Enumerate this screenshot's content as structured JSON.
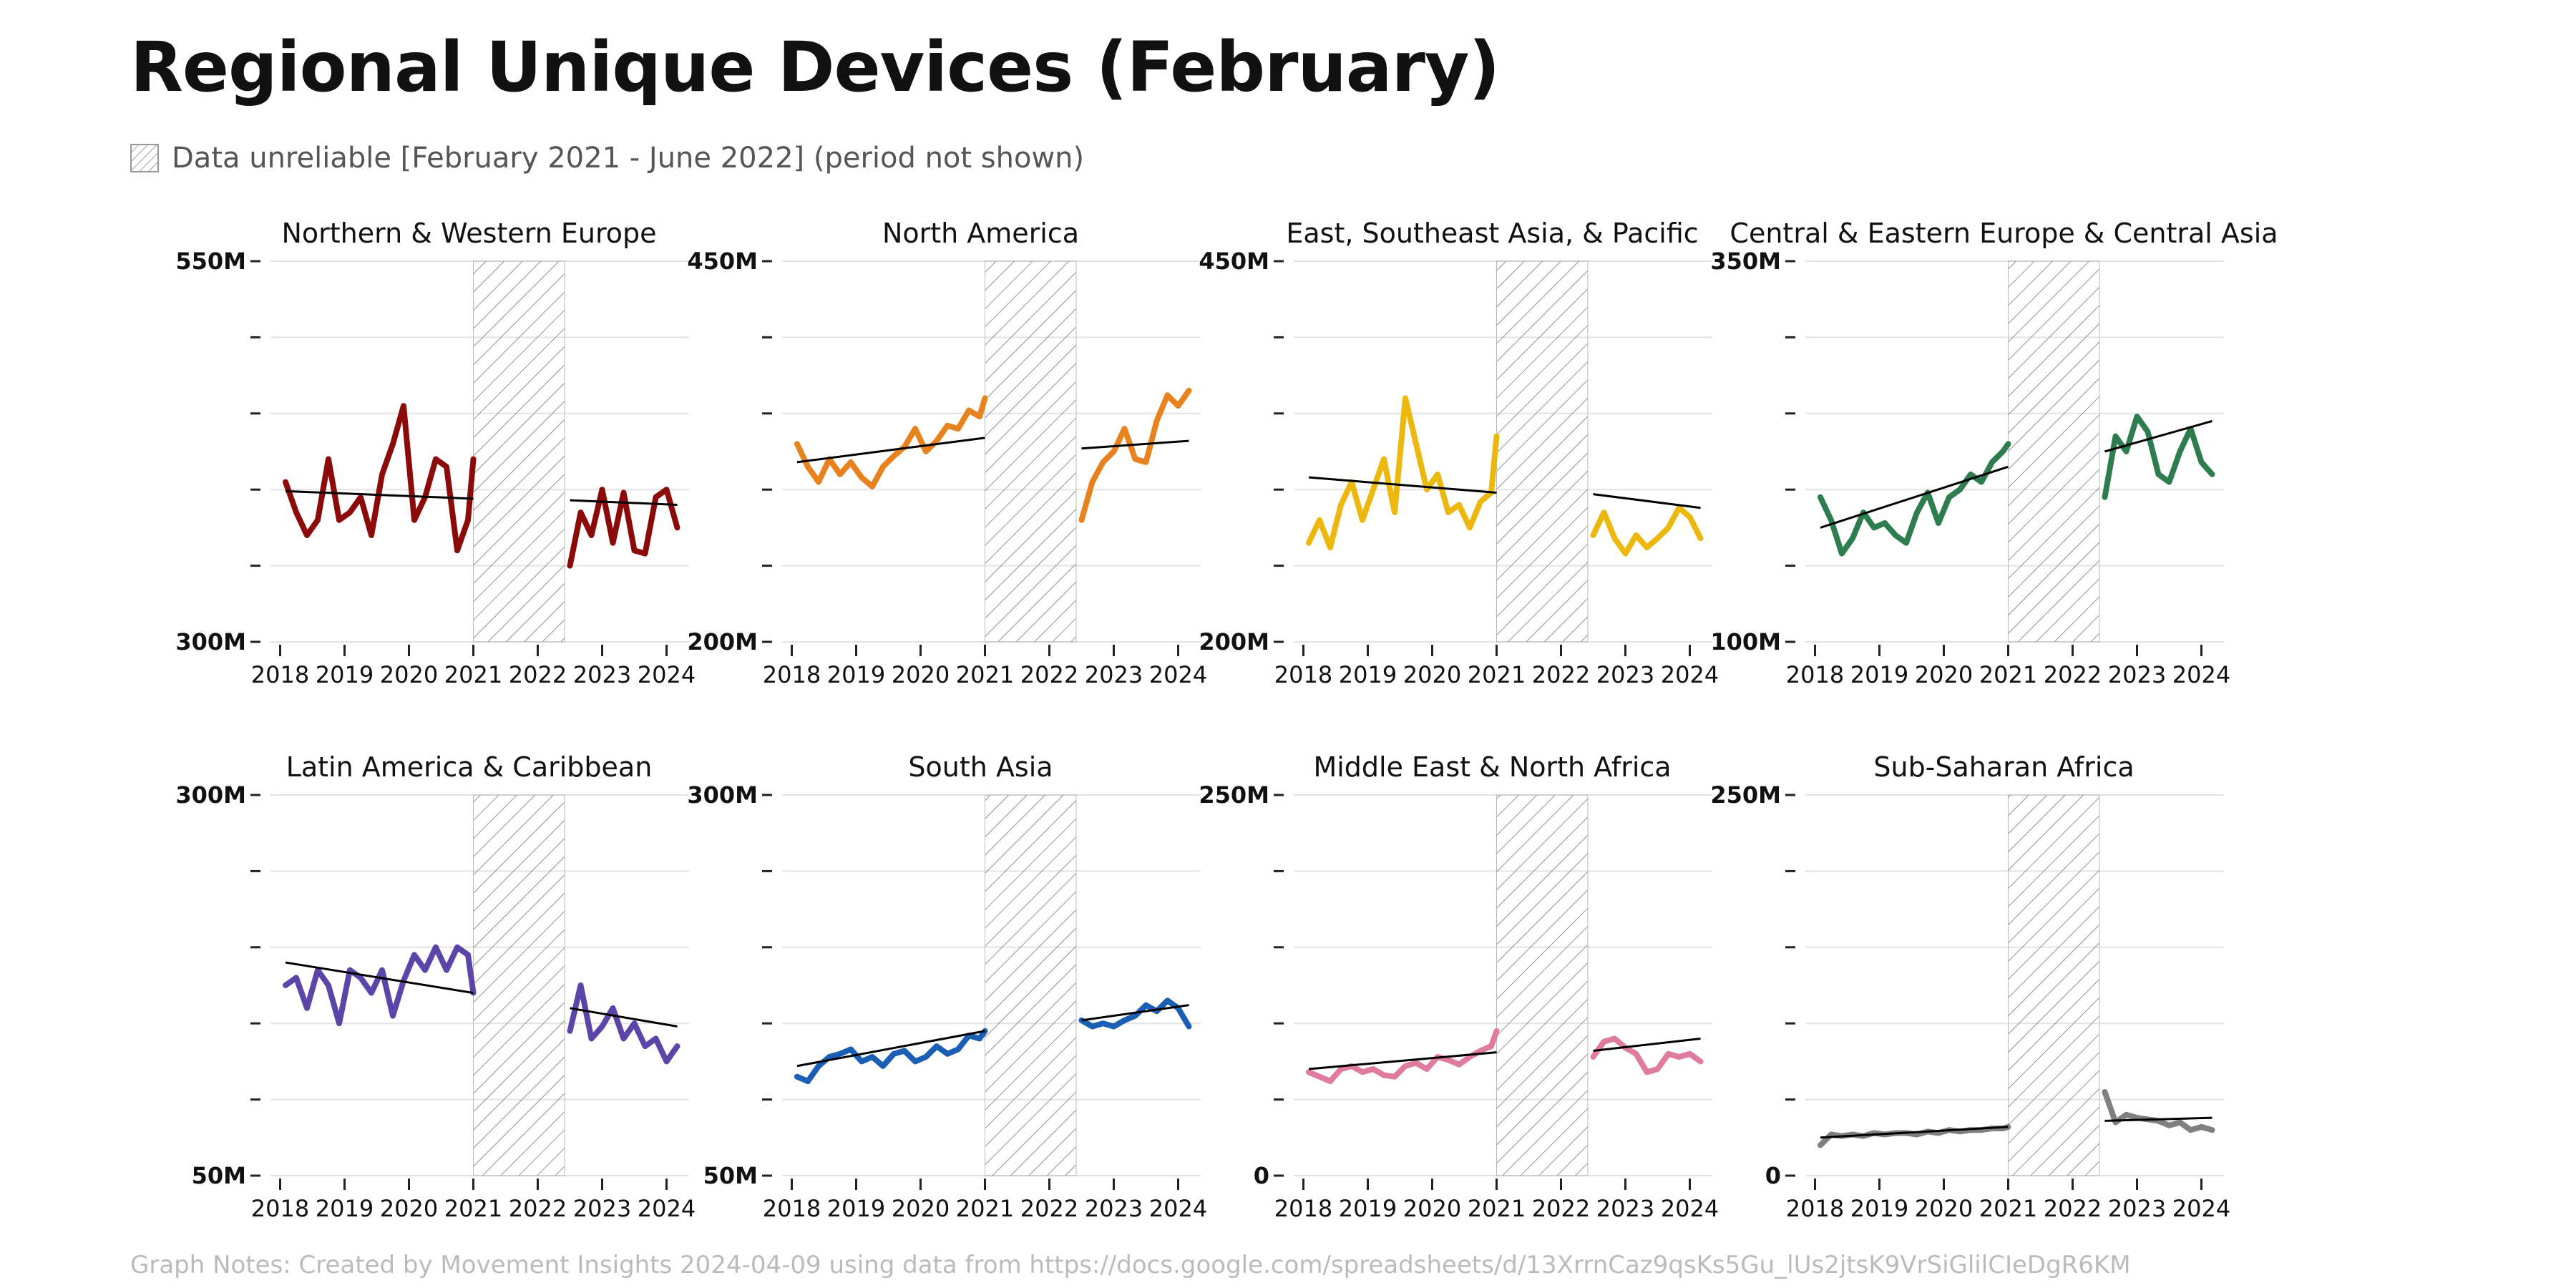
{
  "header": {
    "title": "Regional Unique Devices (February)",
    "legend_label": "Data unreliable [February 2021 - June 2022] (period not shown)"
  },
  "footer": {
    "notes": "Graph Notes: Created by Movement Insights 2024-04-09 using data from https://docs.google.com/spreadsheets/d/13XrrnCaz9qsKs5Gu_lUs2jtsK9VrSiGlilCIeDgR6KM"
  },
  "chart_data": [
    {
      "type": "line",
      "title": "Northern & Western Europe",
      "color": "#8B0A0A",
      "ylim": [
        300000000,
        550000000
      ],
      "ytick_labels": [
        "300M",
        "550M"
      ],
      "xticks": [
        "2018",
        "2019",
        "2020",
        "2021",
        "2022",
        "2023",
        "2024"
      ],
      "unreliable_period": [
        "2021-02",
        "2022-06"
      ],
      "series": [
        {
          "segment": "before",
          "x": [
            "2018-02",
            "2018-04",
            "2018-06",
            "2018-08",
            "2018-10",
            "2018-12",
            "2019-02",
            "2019-04",
            "2019-06",
            "2019-08",
            "2019-10",
            "2019-12",
            "2020-02",
            "2020-04",
            "2020-06",
            "2020-08",
            "2020-10",
            "2020-12",
            "2021-01"
          ],
          "values": [
            405000000,
            385000000,
            370000000,
            380000000,
            420000000,
            380000000,
            385000000,
            395000000,
            370000000,
            410000000,
            430000000,
            455000000,
            380000000,
            395000000,
            420000000,
            415000000,
            360000000,
            380000000,
            420000000
          ]
        },
        {
          "segment": "after",
          "x": [
            "2022-07",
            "2022-09",
            "2022-11",
            "2023-01",
            "2023-03",
            "2023-05",
            "2023-07",
            "2023-09",
            "2023-11",
            "2024-01",
            "2024-03"
          ],
          "values": [
            350000000,
            385000000,
            370000000,
            400000000,
            365000000,
            398000000,
            360000000,
            358000000,
            395000000,
            400000000,
            375000000
          ]
        }
      ],
      "trend": [
        {
          "x": [
            "2018-02",
            "2021-01"
          ],
          "values": [
            399000000,
            394000000
          ]
        },
        {
          "x": [
            "2022-07",
            "2024-03"
          ],
          "values": [
            393000000,
            390000000
          ]
        }
      ]
    },
    {
      "type": "line",
      "title": "North America",
      "color": "#E8821E",
      "ylim": [
        200000000,
        450000000
      ],
      "ytick_labels": [
        "200M",
        "450M"
      ],
      "xticks": [
        "2018",
        "2019",
        "2020",
        "2021",
        "2022",
        "2023",
        "2024"
      ],
      "unreliable_period": [
        "2021-02",
        "2022-06"
      ],
      "series": [
        {
          "segment": "before",
          "x": [
            "2018-02",
            "2018-04",
            "2018-06",
            "2018-08",
            "2018-10",
            "2018-12",
            "2019-02",
            "2019-04",
            "2019-06",
            "2019-08",
            "2019-10",
            "2019-12",
            "2020-02",
            "2020-04",
            "2020-06",
            "2020-08",
            "2020-10",
            "2020-12",
            "2021-01"
          ],
          "values": [
            330000000,
            315000000,
            305000000,
            320000000,
            310000000,
            318000000,
            308000000,
            302000000,
            315000000,
            322000000,
            328000000,
            340000000,
            325000000,
            332000000,
            342000000,
            340000000,
            352000000,
            348000000,
            360000000
          ]
        },
        {
          "segment": "after",
          "x": [
            "2022-07",
            "2022-09",
            "2022-11",
            "2023-01",
            "2023-03",
            "2023-05",
            "2023-07",
            "2023-09",
            "2023-11",
            "2024-01",
            "2024-03"
          ],
          "values": [
            280000000,
            305000000,
            318000000,
            325000000,
            340000000,
            320000000,
            318000000,
            345000000,
            362000000,
            355000000,
            365000000
          ]
        }
      ],
      "trend": [
        {
          "x": [
            "2018-02",
            "2021-01"
          ],
          "values": [
            318000000,
            334000000
          ]
        },
        {
          "x": [
            "2022-07",
            "2024-03"
          ],
          "values": [
            327000000,
            332000000
          ]
        }
      ]
    },
    {
      "type": "line",
      "title": "East, Southeast Asia, & Pacific",
      "color": "#EDB80E",
      "ylim": [
        200000000,
        450000000
      ],
      "ytick_labels": [
        "200M",
        "450M"
      ],
      "xticks": [
        "2018",
        "2019",
        "2020",
        "2021",
        "2022",
        "2023",
        "2024"
      ],
      "unreliable_period": [
        "2021-02",
        "2022-06"
      ],
      "series": [
        {
          "segment": "before",
          "x": [
            "2018-02",
            "2018-04",
            "2018-06",
            "2018-08",
            "2018-10",
            "2018-12",
            "2019-02",
            "2019-04",
            "2019-06",
            "2019-08",
            "2019-10",
            "2019-12",
            "2020-02",
            "2020-04",
            "2020-06",
            "2020-08",
            "2020-10",
            "2020-12",
            "2021-01"
          ],
          "values": [
            265000000,
            280000000,
            262000000,
            290000000,
            305000000,
            280000000,
            300000000,
            320000000,
            285000000,
            360000000,
            330000000,
            300000000,
            310000000,
            285000000,
            290000000,
            275000000,
            292000000,
            298000000,
            335000000
          ]
        },
        {
          "segment": "after",
          "x": [
            "2022-07",
            "2022-09",
            "2022-11",
            "2023-01",
            "2023-03",
            "2023-05",
            "2023-07",
            "2023-09",
            "2023-11",
            "2024-01",
            "2024-03"
          ],
          "values": [
            270000000,
            285000000,
            268000000,
            258000000,
            270000000,
            262000000,
            268000000,
            275000000,
            288000000,
            282000000,
            268000000
          ]
        }
      ],
      "trend": [
        {
          "x": [
            "2018-02",
            "2021-01"
          ],
          "values": [
            308000000,
            298000000
          ]
        },
        {
          "x": [
            "2022-07",
            "2024-03"
          ],
          "values": [
            297000000,
            288000000
          ]
        }
      ]
    },
    {
      "type": "line",
      "title": "Central & Eastern Europe & Central Asia",
      "color": "#2E7D4F",
      "ylim": [
        100000000,
        350000000
      ],
      "ytick_labels": [
        "100M",
        "350M"
      ],
      "xticks": [
        "2018",
        "2019",
        "2020",
        "2021",
        "2022",
        "2023",
        "2024"
      ],
      "unreliable_period": [
        "2021-02",
        "2022-06"
      ],
      "series": [
        {
          "segment": "before",
          "x": [
            "2018-02",
            "2018-04",
            "2018-06",
            "2018-08",
            "2018-10",
            "2018-12",
            "2019-02",
            "2019-04",
            "2019-06",
            "2019-08",
            "2019-10",
            "2019-12",
            "2020-02",
            "2020-04",
            "2020-06",
            "2020-08",
            "2020-10",
            "2020-12",
            "2021-01"
          ],
          "values": [
            195000000,
            180000000,
            158000000,
            168000000,
            185000000,
            175000000,
            178000000,
            170000000,
            165000000,
            185000000,
            198000000,
            178000000,
            195000000,
            200000000,
            210000000,
            205000000,
            218000000,
            225000000,
            230000000
          ]
        },
        {
          "segment": "after",
          "x": [
            "2022-07",
            "2022-09",
            "2022-11",
            "2023-01",
            "2023-03",
            "2023-05",
            "2023-07",
            "2023-09",
            "2023-11",
            "2024-01",
            "2024-03"
          ],
          "values": [
            195000000,
            235000000,
            225000000,
            248000000,
            238000000,
            210000000,
            205000000,
            225000000,
            240000000,
            218000000,
            210000000
          ]
        }
      ],
      "trend": [
        {
          "x": [
            "2018-02",
            "2021-01"
          ],
          "values": [
            175000000,
            215000000
          ]
        },
        {
          "x": [
            "2022-07",
            "2024-03"
          ],
          "values": [
            225000000,
            245000000
          ]
        }
      ]
    },
    {
      "type": "line",
      "title": "Latin America & Caribbean",
      "color": "#5B45A8",
      "ylim": [
        50000000,
        300000000
      ],
      "ytick_labels": [
        "50M",
        "300M"
      ],
      "xticks": [
        "2018",
        "2019",
        "2020",
        "2021",
        "2022",
        "2023",
        "2024"
      ],
      "unreliable_period": [
        "2021-02",
        "2022-06"
      ],
      "series": [
        {
          "segment": "before",
          "x": [
            "2018-02",
            "2018-04",
            "2018-06",
            "2018-08",
            "2018-10",
            "2018-12",
            "2019-02",
            "2019-04",
            "2019-06",
            "2019-08",
            "2019-10",
            "2019-12",
            "2020-02",
            "2020-04",
            "2020-06",
            "2020-08",
            "2020-10",
            "2020-12",
            "2021-01"
          ],
          "values": [
            175000000,
            180000000,
            160000000,
            185000000,
            175000000,
            150000000,
            185000000,
            180000000,
            170000000,
            185000000,
            155000000,
            178000000,
            195000000,
            185000000,
            200000000,
            185000000,
            200000000,
            195000000,
            170000000
          ]
        },
        {
          "segment": "after",
          "x": [
            "2022-07",
            "2022-09",
            "2022-11",
            "2023-01",
            "2023-03",
            "2023-05",
            "2023-07",
            "2023-09",
            "2023-11",
            "2024-01",
            "2024-03"
          ],
          "values": [
            145000000,
            175000000,
            140000000,
            148000000,
            160000000,
            140000000,
            150000000,
            135000000,
            140000000,
            125000000,
            135000000
          ]
        }
      ],
      "trend": [
        {
          "x": [
            "2018-02",
            "2021-01"
          ],
          "values": [
            190000000,
            170000000
          ]
        },
        {
          "x": [
            "2022-07",
            "2024-03"
          ],
          "values": [
            160000000,
            148000000
          ]
        }
      ]
    },
    {
      "type": "line",
      "title": "South Asia",
      "color": "#1A5FB4",
      "ylim": [
        50000000,
        300000000
      ],
      "ytick_labels": [
        "50M",
        "300M"
      ],
      "xticks": [
        "2018",
        "2019",
        "2020",
        "2021",
        "2022",
        "2023",
        "2024"
      ],
      "unreliable_period": [
        "2021-02",
        "2022-06"
      ],
      "series": [
        {
          "segment": "before",
          "x": [
            "2018-02",
            "2018-04",
            "2018-06",
            "2018-08",
            "2018-10",
            "2018-12",
            "2019-02",
            "2019-04",
            "2019-06",
            "2019-08",
            "2019-10",
            "2019-12",
            "2020-02",
            "2020-04",
            "2020-06",
            "2020-08",
            "2020-10",
            "2020-12",
            "2021-01"
          ],
          "values": [
            115000000,
            112000000,
            122000000,
            128000000,
            130000000,
            133000000,
            125000000,
            128000000,
            122000000,
            130000000,
            132000000,
            125000000,
            128000000,
            135000000,
            130000000,
            133000000,
            142000000,
            140000000,
            145000000
          ]
        },
        {
          "segment": "after",
          "x": [
            "2022-07",
            "2022-09",
            "2022-11",
            "2023-01",
            "2023-03",
            "2023-05",
            "2023-07",
            "2023-09",
            "2023-11",
            "2024-01",
            "2024-03"
          ],
          "values": [
            152000000,
            148000000,
            150000000,
            148000000,
            152000000,
            155000000,
            162000000,
            158000000,
            165000000,
            160000000,
            148000000
          ]
        }
      ],
      "trend": [
        {
          "x": [
            "2018-02",
            "2021-01"
          ],
          "values": [
            122000000,
            145000000
          ]
        },
        {
          "x": [
            "2022-07",
            "2024-03"
          ],
          "values": [
            152000000,
            162000000
          ]
        }
      ]
    },
    {
      "type": "line",
      "title": "Middle East & North Africa",
      "color": "#E07BA0",
      "ylim": [
        0,
        250000000
      ],
      "ytick_labels": [
        "0",
        "250M"
      ],
      "xticks": [
        "2018",
        "2019",
        "2020",
        "2021",
        "2022",
        "2023",
        "2024"
      ],
      "unreliable_period": [
        "2021-02",
        "2022-06"
      ],
      "series": [
        {
          "segment": "before",
          "x": [
            "2018-02",
            "2018-04",
            "2018-06",
            "2018-08",
            "2018-10",
            "2018-12",
            "2019-02",
            "2019-04",
            "2019-06",
            "2019-08",
            "2019-10",
            "2019-12",
            "2020-02",
            "2020-04",
            "2020-06",
            "2020-08",
            "2020-10",
            "2020-12",
            "2021-01"
          ],
          "values": [
            68000000,
            65000000,
            62000000,
            70000000,
            72000000,
            68000000,
            70000000,
            66000000,
            65000000,
            72000000,
            74000000,
            70000000,
            78000000,
            76000000,
            73000000,
            78000000,
            82000000,
            85000000,
            95000000
          ]
        },
        {
          "segment": "after",
          "x": [
            "2022-07",
            "2022-09",
            "2022-11",
            "2023-01",
            "2023-03",
            "2023-05",
            "2023-07",
            "2023-09",
            "2023-11",
            "2024-01",
            "2024-03"
          ],
          "values": [
            78000000,
            88000000,
            90000000,
            84000000,
            80000000,
            68000000,
            70000000,
            80000000,
            78000000,
            80000000,
            75000000
          ]
        }
      ],
      "trend": [
        {
          "x": [
            "2018-02",
            "2021-01"
          ],
          "values": [
            70000000,
            81000000
          ]
        },
        {
          "x": [
            "2022-07",
            "2024-03"
          ],
          "values": [
            82000000,
            90000000
          ]
        }
      ]
    },
    {
      "type": "line",
      "title": "Sub-Saharan Africa",
      "color": "#808080",
      "ylim": [
        0,
        250000000
      ],
      "ytick_labels": [
        "0",
        "250M"
      ],
      "xticks": [
        "2018",
        "2019",
        "2020",
        "2021",
        "2022",
        "2023",
        "2024"
      ],
      "unreliable_period": [
        "2021-02",
        "2022-06"
      ],
      "series": [
        {
          "segment": "before",
          "x": [
            "2018-02",
            "2018-04",
            "2018-06",
            "2018-08",
            "2018-10",
            "2018-12",
            "2019-02",
            "2019-04",
            "2019-06",
            "2019-08",
            "2019-10",
            "2019-12",
            "2020-02",
            "2020-04",
            "2020-06",
            "2020-08",
            "2020-10",
            "2020-12",
            "2021-01"
          ],
          "values": [
            20000000,
            27000000,
            26000000,
            27000000,
            26000000,
            28000000,
            27000000,
            28000000,
            28000000,
            27000000,
            29000000,
            28000000,
            30000000,
            29000000,
            30000000,
            30000000,
            31000000,
            31000000,
            32000000
          ]
        },
        {
          "segment": "after",
          "x": [
            "2022-07",
            "2022-09",
            "2022-11",
            "2023-01",
            "2023-03",
            "2023-05",
            "2023-07",
            "2023-09",
            "2023-11",
            "2024-01",
            "2024-03"
          ],
          "values": [
            55000000,
            35000000,
            40000000,
            38000000,
            37000000,
            36000000,
            33000000,
            35000000,
            30000000,
            32000000,
            30000000
          ]
        }
      ],
      "trend": [
        {
          "x": [
            "2018-02",
            "2021-01"
          ],
          "values": [
            25000000,
            32000000
          ]
        },
        {
          "x": [
            "2022-07",
            "2024-03"
          ],
          "values": [
            36000000,
            38000000
          ]
        }
      ]
    }
  ]
}
